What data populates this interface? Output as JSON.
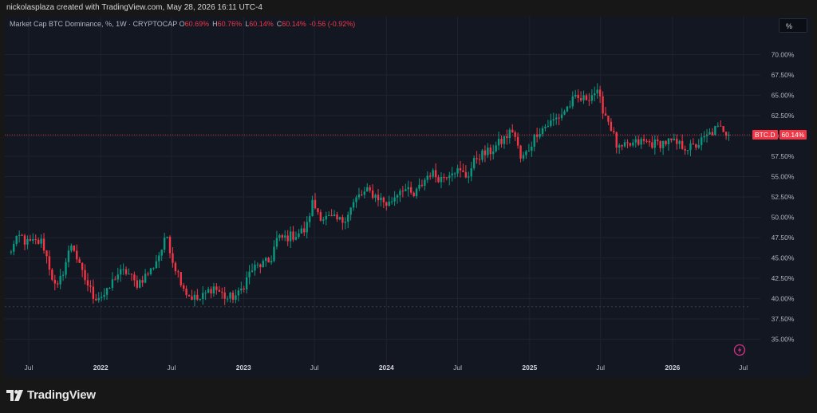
{
  "header": {
    "author_line": "nickolasplaza created with TradingView.com, May 28, 2026 16:11 UTC-4"
  },
  "legend": {
    "symbol": "Market Cap BTC Dominance, %",
    "interval": "1W",
    "source": "CRYPTOCAP",
    "open_label": "O",
    "open": "60.69%",
    "high_label": "H",
    "high": "60.76%",
    "low_label": "L",
    "low": "60.14%",
    "close_label": "C",
    "close": "60.14%",
    "change": "-0.56 (-0.92%)"
  },
  "scale_button": {
    "label": "%"
  },
  "price_label": {
    "symbol": "BTC.D",
    "value": "60.14%"
  },
  "footer": {
    "brand": "TradingView",
    "logo_icon": "tradingview-logo-icon"
  },
  "colors": {
    "up": "#089981",
    "down": "#f23645",
    "background": "#131722",
    "grid": "#1f2330",
    "axis_text": "#b2b5be",
    "flash_icon": "#d5318a"
  },
  "chart_data": {
    "type": "candlestick",
    "title": "Market Cap BTC Dominance, % · 1W · CRYPTOCAP",
    "xlabel": "",
    "ylabel": "",
    "ylim": [
      32.5,
      72.5
    ],
    "y_ticks": [
      "35.00%",
      "37.50%",
      "40.00%",
      "42.50%",
      "45.00%",
      "47.50%",
      "50.00%",
      "52.50%",
      "55.00%",
      "57.50%",
      "60.00%",
      "62.50%",
      "65.00%",
      "67.50%",
      "70.00%"
    ],
    "x_ticks": [
      "Jul",
      "2022",
      "Jul",
      "2023",
      "Jul",
      "2024",
      "Jul",
      "2025",
      "Jul",
      "2026",
      "Jul"
    ],
    "x_tick_dates": [
      "2021-07-01",
      "2022-01-01",
      "2022-07-01",
      "2023-01-01",
      "2023-07-01",
      "2024-01-01",
      "2024-07-01",
      "2025-01-01",
      "2025-07-01",
      "2026-01-01",
      "2026-07-01"
    ],
    "x_range": [
      "2021-05-01",
      "2026-07-20"
    ],
    "last_price": 60.14,
    "grid": true,
    "anchors": [
      {
        "date": "2021-05-10",
        "value": 45.5
      },
      {
        "date": "2021-06-10",
        "value": 47.8
      },
      {
        "date": "2021-06-25",
        "value": 46.8
      },
      {
        "date": "2021-08-05",
        "value": 47.0
      },
      {
        "date": "2021-09-10",
        "value": 40.8
      },
      {
        "date": "2021-10-20",
        "value": 47.0
      },
      {
        "date": "2021-11-10",
        "value": 43.5
      },
      {
        "date": "2021-12-15",
        "value": 40.2
      },
      {
        "date": "2022-01-15",
        "value": 40.5
      },
      {
        "date": "2022-02-10",
        "value": 43.0
      },
      {
        "date": "2022-03-10",
        "value": 43.3
      },
      {
        "date": "2022-04-01",
        "value": 41.7
      },
      {
        "date": "2022-05-10",
        "value": 43.5
      },
      {
        "date": "2022-06-05",
        "value": 46.0
      },
      {
        "date": "2022-06-20",
        "value": 47.7
      },
      {
        "date": "2022-07-05",
        "value": 44.5
      },
      {
        "date": "2022-08-10",
        "value": 40.5
      },
      {
        "date": "2022-09-10",
        "value": 39.8
      },
      {
        "date": "2022-10-15",
        "value": 41.5
      },
      {
        "date": "2022-11-20",
        "value": 40.0
      },
      {
        "date": "2022-12-20",
        "value": 40.5
      },
      {
        "date": "2023-01-20",
        "value": 43.5
      },
      {
        "date": "2023-02-15",
        "value": 44.2
      },
      {
        "date": "2023-03-10",
        "value": 44.5
      },
      {
        "date": "2023-03-25",
        "value": 47.2
      },
      {
        "date": "2023-05-10",
        "value": 47.8
      },
      {
        "date": "2023-06-10",
        "value": 48.5
      },
      {
        "date": "2023-06-25",
        "value": 51.8
      },
      {
        "date": "2023-07-20",
        "value": 50.0
      },
      {
        "date": "2023-09-10",
        "value": 49.5
      },
      {
        "date": "2023-10-20",
        "value": 52.5
      },
      {
        "date": "2023-11-15",
        "value": 53.2
      },
      {
        "date": "2023-12-10",
        "value": 52.5
      },
      {
        "date": "2024-01-05",
        "value": 51.5
      },
      {
        "date": "2024-02-10",
        "value": 53.8
      },
      {
        "date": "2024-03-10",
        "value": 52.5
      },
      {
        "date": "2024-04-20",
        "value": 55.5
      },
      {
        "date": "2024-05-20",
        "value": 54.8
      },
      {
        "date": "2024-06-20",
        "value": 56.0
      },
      {
        "date": "2024-07-25",
        "value": 55.0
      },
      {
        "date": "2024-08-20",
        "value": 57.5
      },
      {
        "date": "2024-09-20",
        "value": 58.0
      },
      {
        "date": "2024-10-25",
        "value": 59.5
      },
      {
        "date": "2024-11-20",
        "value": 60.8
      },
      {
        "date": "2024-12-10",
        "value": 57.0
      },
      {
        "date": "2024-12-25",
        "value": 58.0
      },
      {
        "date": "2025-01-20",
        "value": 60.5
      },
      {
        "date": "2025-02-20",
        "value": 61.5
      },
      {
        "date": "2025-03-20",
        "value": 62.5
      },
      {
        "date": "2025-04-25",
        "value": 64.5
      },
      {
        "date": "2025-05-20",
        "value": 64.5
      },
      {
        "date": "2025-06-20",
        "value": 65.5
      },
      {
        "date": "2025-07-10",
        "value": 63.0
      },
      {
        "date": "2025-07-25",
        "value": 61.5
      },
      {
        "date": "2025-08-15",
        "value": 58.2
      },
      {
        "date": "2025-09-10",
        "value": 58.8
      },
      {
        "date": "2025-10-15",
        "value": 59.3
      },
      {
        "date": "2025-11-20",
        "value": 59.0
      },
      {
        "date": "2025-12-20",
        "value": 59.3
      },
      {
        "date": "2026-01-25",
        "value": 58.8
      },
      {
        "date": "2026-02-20",
        "value": 58.5
      },
      {
        "date": "2026-03-20",
        "value": 59.5
      },
      {
        "date": "2026-04-20",
        "value": 60.8
      },
      {
        "date": "2026-05-10",
        "value": 60.9
      },
      {
        "date": "2026-05-25",
        "value": 60.14
      }
    ]
  }
}
